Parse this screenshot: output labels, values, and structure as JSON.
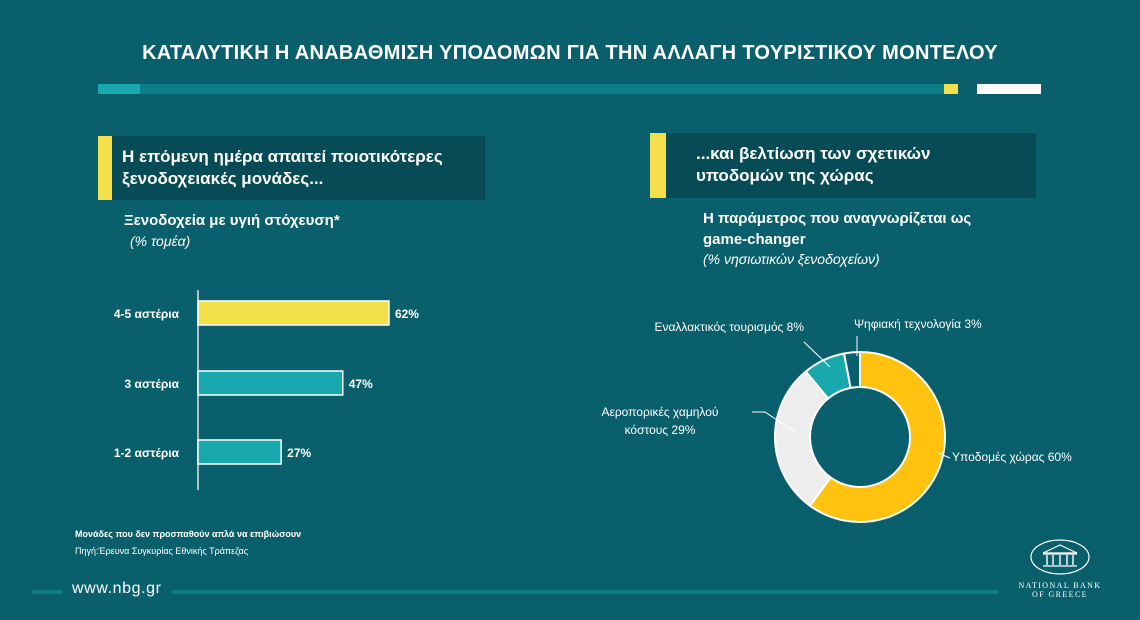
{
  "title": "ΚΑΤΑΛΥΤΙΚΗ Η ΑΝΑΒΑΘΜΙΣΗ ΥΠΟΔΟΜΩΝ ΓΙΑ ΤΗΝ ΑΛΛΑΓΗ ΤΟΥΡΙΣΤΙΚΟΥ ΜΟΝΤΕΛΟΥ",
  "left": {
    "callout_line1": "Η επόμενη ημέρα απαιτεί ποιοτικότερες",
    "callout_line2": "ξενοδοχειακές μονάδες...",
    "chart_title": "Ξενοδοχεία με υγιή στόχευση*",
    "chart_note": "(% τομέα)"
  },
  "right": {
    "callout_line1": "...και βελτίωση των σχετικών",
    "callout_line2": "υποδομών της χώρας",
    "chart_title_line1": "Η παράμετρος που  αναγνωρίζεται ως",
    "chart_title_line2": "game-changer",
    "chart_note": "(% νησιωτικών ξενοδοχείων)"
  },
  "chart_data": [
    {
      "type": "bar",
      "orientation": "horizontal",
      "title": "Ξενοδοχεία με υγιή στόχευση*",
      "subtitle": "(% τομέα)",
      "categories": [
        "4-5 αστέρια",
        "3 αστέρια",
        "1-2 αστέρια"
      ],
      "values": [
        62,
        47,
        27
      ],
      "value_labels": [
        "62%",
        "47%",
        "27%"
      ],
      "colors": [
        "#f2df4a",
        "#19a8ad",
        "#19a8ad"
      ],
      "xlim": [
        0,
        100
      ],
      "grid": false
    },
    {
      "type": "pie",
      "donut": true,
      "title": "Η παράμετρος που αναγνωρίζεται ως game-changer",
      "subtitle": "(% νησιωτικών ξενοδοχείων)",
      "slices": [
        {
          "label_lines": [
            "Υποδομές χώρας 60%"
          ],
          "value": 60,
          "color": "#ffc20e"
        },
        {
          "label_lines": [
            "Αεροπορικές χαμηλού",
            "κόστους 29%"
          ],
          "value": 29,
          "color": "#eeeeee"
        },
        {
          "label_lines": [
            "Εναλλακτικός τουρισμός 8%"
          ],
          "value": 8,
          "color": "#19a8ad"
        },
        {
          "label_lines": [
            "Ψηφιακή τεχνολογία 3%"
          ],
          "value": 3,
          "color": "#0a5f6c"
        }
      ]
    }
  ],
  "footnotes": {
    "line1": "Μονάδες που δεν προσπαθούν απλά να επιβιώσουν",
    "line2": "Πηγή:Έρευνα Συγκυρίας Εθνικής Τράπεζας"
  },
  "footer": {
    "url": "www.nbg.gr",
    "logo_line1": "NATIONAL BANK",
    "logo_line2": "OF GREECE"
  },
  "colors": {
    "background": "#0a5f6c",
    "panel": "#074b56",
    "accent_yellow": "#f2df4a",
    "accent_teal": "#19a8ad"
  }
}
